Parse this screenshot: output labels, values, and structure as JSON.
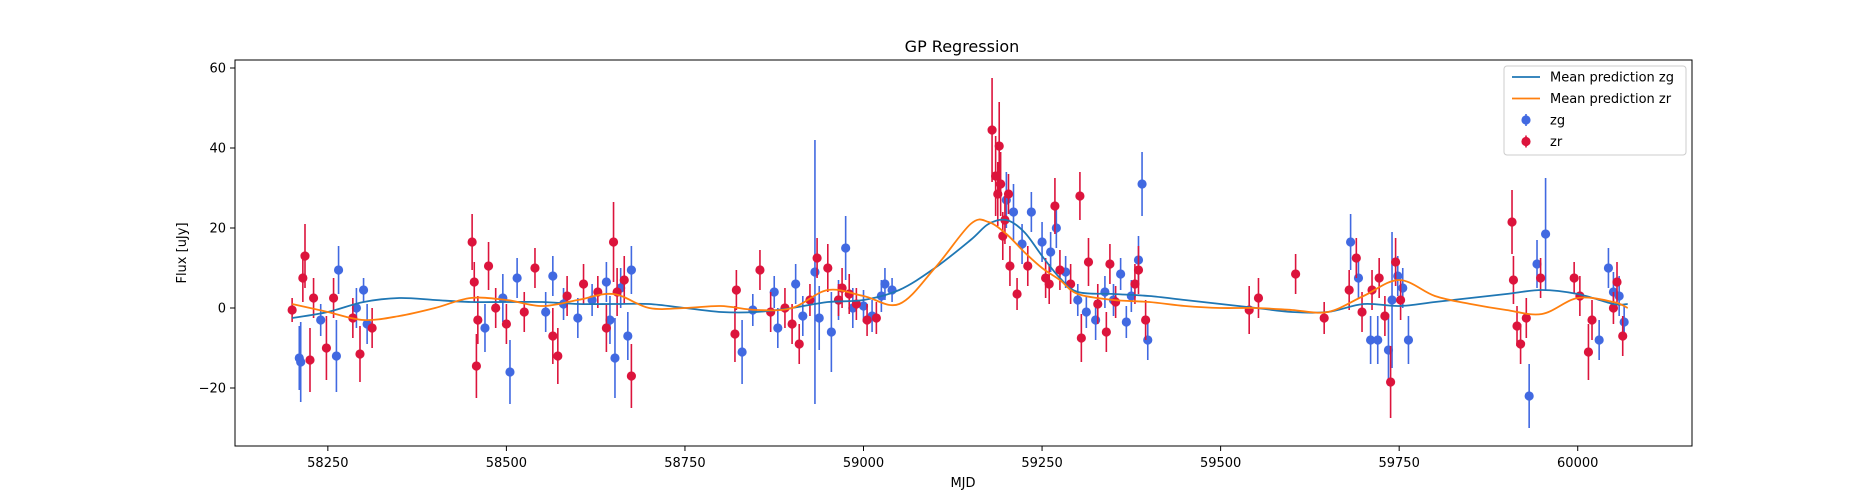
{
  "chart_data": {
    "type": "scatter",
    "title": "GP Regression",
    "xlabel": "MJD",
    "ylabel": "Flux [uJy]",
    "xlim": [
      58120,
      60160
    ],
    "ylim": [
      -34.5,
      62
    ],
    "xticks": [
      58250,
      58500,
      58750,
      59000,
      59250,
      59500,
      59750,
      60000
    ],
    "yticks": [
      -20,
      0,
      20,
      40,
      60
    ],
    "grid": false,
    "legend_position": "top-right",
    "legend": [
      {
        "label": "Mean prediction zg",
        "kind": "line",
        "color": "#1f77b4"
      },
      {
        "label": "Mean prediction zr",
        "kind": "line",
        "color": "#ff7f0e"
      },
      {
        "label": "zg",
        "kind": "errorbar",
        "color": "#4169e1"
      },
      {
        "label": "zr",
        "kind": "errorbar",
        "color": "#dc143c"
      }
    ],
    "series": [
      {
        "name": "Mean prediction zg",
        "kind": "line",
        "color": "#1f77b4",
        "x": [
          58200,
          58250,
          58300,
          58350,
          58400,
          58450,
          58500,
          58550,
          58600,
          58650,
          58700,
          58750,
          58800,
          58850,
          58900,
          58950,
          59000,
          59050,
          59100,
          59150,
          59175,
          59200,
          59225,
          59250,
          59275,
          59300,
          59350,
          59400,
          59450,
          59500,
          59550,
          59600,
          59650,
          59700,
          59750,
          59800,
          59850,
          59900,
          59950,
          60000,
          60050,
          60070
        ],
        "y": [
          -2.5,
          -1,
          1.5,
          2.5,
          2,
          1.5,
          1.5,
          1.5,
          1,
          1,
          1,
          0,
          -1,
          -1,
          0,
          1.5,
          2,
          4.5,
          10,
          17,
          21,
          22,
          19,
          13,
          7.5,
          4,
          3.5,
          3,
          2,
          1,
          0,
          -1,
          -1,
          1,
          0.5,
          1.5,
          2.5,
          3.5,
          4.5,
          3.5,
          1,
          1
        ]
      },
      {
        "name": "Mean prediction zr",
        "kind": "line",
        "color": "#ff7f0e",
        "x": [
          58200,
          58250,
          58300,
          58350,
          58400,
          58450,
          58500,
          58550,
          58600,
          58650,
          58700,
          58750,
          58800,
          58850,
          58900,
          58950,
          59000,
          59050,
          59100,
          59150,
          59175,
          59200,
          59225,
          59250,
          59275,
          59300,
          59350,
          59400,
          59450,
          59500,
          59550,
          59600,
          59650,
          59700,
          59750,
          59800,
          59850,
          59900,
          59950,
          60000,
          60050,
          60070
        ],
        "y": [
          1,
          -1,
          -3,
          -2,
          0,
          2.5,
          2,
          0.5,
          2,
          3.5,
          0,
          0,
          0.5,
          -0.5,
          0,
          4.5,
          3,
          1,
          10,
          21,
          21.5,
          18.5,
          14,
          10,
          7,
          3.5,
          2,
          1.5,
          0.5,
          0,
          0,
          -0.5,
          -1,
          3,
          7,
          3,
          1,
          -0.5,
          -1.5,
          2.5,
          1.5,
          0
        ]
      },
      {
        "name": "zg",
        "kind": "errorbar",
        "color": "#4169e1",
        "points": [
          {
            "x": 58210,
            "y": -12.5,
            "e": 8
          },
          {
            "x": 58212,
            "y": -13.5,
            "e": 10
          },
          {
            "x": 58240,
            "y": -3,
            "e": 4
          },
          {
            "x": 58262,
            "y": -12,
            "e": 9
          },
          {
            "x": 58265,
            "y": 9.5,
            "e": 6
          },
          {
            "x": 58290,
            "y": 0,
            "e": 5
          },
          {
            "x": 58300,
            "y": 4.5,
            "e": 3
          },
          {
            "x": 58305,
            "y": -4,
            "e": 5
          },
          {
            "x": 58470,
            "y": -5,
            "e": 6
          },
          {
            "x": 58495,
            "y": 2.5,
            "e": 6
          },
          {
            "x": 58505,
            "y": -16,
            "e": 8
          },
          {
            "x": 58515,
            "y": 7.5,
            "e": 5
          },
          {
            "x": 58555,
            "y": -1,
            "e": 5
          },
          {
            "x": 58565,
            "y": 8,
            "e": 5
          },
          {
            "x": 58580,
            "y": 1,
            "e": 4
          },
          {
            "x": 58600,
            "y": -2.5,
            "e": 5
          },
          {
            "x": 58620,
            "y": 2,
            "e": 4
          },
          {
            "x": 58640,
            "y": 6.5,
            "e": 5
          },
          {
            "x": 58645,
            "y": -3,
            "e": 6
          },
          {
            "x": 58652,
            "y": -12.5,
            "e": 10
          },
          {
            "x": 58660,
            "y": 5,
            "e": 5
          },
          {
            "x": 58670,
            "y": -7,
            "e": 6
          },
          {
            "x": 58675,
            "y": 9.5,
            "e": 6
          },
          {
            "x": 58830,
            "y": -11,
            "e": 8
          },
          {
            "x": 58845,
            "y": -0.5,
            "e": 4
          },
          {
            "x": 58875,
            "y": 4,
            "e": 4
          },
          {
            "x": 58880,
            "y": -5,
            "e": 5
          },
          {
            "x": 58905,
            "y": 6,
            "e": 5
          },
          {
            "x": 58915,
            "y": -2,
            "e": 5
          },
          {
            "x": 58932,
            "y": 9,
            "e": 33
          },
          {
            "x": 58938,
            "y": -2.5,
            "e": 8
          },
          {
            "x": 58955,
            "y": -6,
            "e": 10
          },
          {
            "x": 58965,
            "y": 2,
            "e": 5
          },
          {
            "x": 58975,
            "y": 15,
            "e": 8
          },
          {
            "x": 58985,
            "y": 0,
            "e": 5
          },
          {
            "x": 59000,
            "y": 0.5,
            "e": 4
          },
          {
            "x": 59012,
            "y": -2,
            "e": 4
          },
          {
            "x": 59025,
            "y": 3,
            "e": 4
          },
          {
            "x": 59030,
            "y": 6,
            "e": 4
          },
          {
            "x": 59040,
            "y": 4.5,
            "e": 3
          },
          {
            "x": 59200,
            "y": 27,
            "e": 7
          },
          {
            "x": 59210,
            "y": 24,
            "e": 7
          },
          {
            "x": 59222,
            "y": 16,
            "e": 5
          },
          {
            "x": 59235,
            "y": 24,
            "e": 5
          },
          {
            "x": 59250,
            "y": 16.5,
            "e": 5
          },
          {
            "x": 59262,
            "y": 14,
            "e": 5
          },
          {
            "x": 59270,
            "y": 20,
            "e": 5
          },
          {
            "x": 59283,
            "y": 9,
            "e": 4
          },
          {
            "x": 59300,
            "y": 2,
            "e": 4
          },
          {
            "x": 59312,
            "y": -1,
            "e": 4
          },
          {
            "x": 59325,
            "y": -3,
            "e": 5
          },
          {
            "x": 59338,
            "y": 4,
            "e": 4
          },
          {
            "x": 59350,
            "y": 2,
            "e": 4
          },
          {
            "x": 59360,
            "y": 8.5,
            "e": 4
          },
          {
            "x": 59368,
            "y": -3.5,
            "e": 4
          },
          {
            "x": 59375,
            "y": 3,
            "e": 4
          },
          {
            "x": 59385,
            "y": 12,
            "e": 6
          },
          {
            "x": 59390,
            "y": 31,
            "e": 8
          },
          {
            "x": 59398,
            "y": -8,
            "e": 5
          },
          {
            "x": 59682,
            "y": 16.5,
            "e": 7
          },
          {
            "x": 59693,
            "y": 7.5,
            "e": 5
          },
          {
            "x": 59710,
            "y": -8,
            "e": 6
          },
          {
            "x": 59720,
            "y": -8,
            "e": 6
          },
          {
            "x": 59735,
            "y": -10.5,
            "e": 9
          },
          {
            "x": 59740,
            "y": 2,
            "e": 17
          },
          {
            "x": 59748,
            "y": 8,
            "e": 5
          },
          {
            "x": 59755,
            "y": 5,
            "e": 5
          },
          {
            "x": 59763,
            "y": -8,
            "e": 6
          },
          {
            "x": 59932,
            "y": -22,
            "e": 8
          },
          {
            "x": 59943,
            "y": 11,
            "e": 6
          },
          {
            "x": 59955,
            "y": 18.5,
            "e": 14
          },
          {
            "x": 60030,
            "y": -8,
            "e": 5
          },
          {
            "x": 60043,
            "y": 10,
            "e": 5
          },
          {
            "x": 60050,
            "y": 4,
            "e": 5
          },
          {
            "x": 60058,
            "y": 3,
            "e": 5
          },
          {
            "x": 60065,
            "y": -3.5,
            "e": 4
          }
        ]
      },
      {
        "name": "zr",
        "kind": "errorbar",
        "color": "#dc143c",
        "points": [
          {
            "x": 58200,
            "y": -0.5,
            "e": 3
          },
          {
            "x": 58215,
            "y": 7.5,
            "e": 6
          },
          {
            "x": 58218,
            "y": 13,
            "e": 8
          },
          {
            "x": 58225,
            "y": -13,
            "e": 8
          },
          {
            "x": 58230,
            "y": 2.5,
            "e": 5
          },
          {
            "x": 58248,
            "y": -10,
            "e": 8
          },
          {
            "x": 58258,
            "y": 2.5,
            "e": 5
          },
          {
            "x": 58285,
            "y": -2.5,
            "e": 5
          },
          {
            "x": 58295,
            "y": -11.5,
            "e": 7
          },
          {
            "x": 58312,
            "y": -5,
            "e": 5
          },
          {
            "x": 58452,
            "y": 16.5,
            "e": 7
          },
          {
            "x": 58455,
            "y": 6.5,
            "e": 5
          },
          {
            "x": 58458,
            "y": -14.5,
            "e": 8
          },
          {
            "x": 58460,
            "y": -3,
            "e": 6
          },
          {
            "x": 58475,
            "y": 10.5,
            "e": 6
          },
          {
            "x": 58485,
            "y": 0,
            "e": 5
          },
          {
            "x": 58500,
            "y": -4,
            "e": 5
          },
          {
            "x": 58525,
            "y": -1,
            "e": 5
          },
          {
            "x": 58540,
            "y": 10,
            "e": 5
          },
          {
            "x": 58565,
            "y": -7,
            "e": 7
          },
          {
            "x": 58572,
            "y": -12,
            "e": 7
          },
          {
            "x": 58585,
            "y": 3,
            "e": 5
          },
          {
            "x": 58608,
            "y": 6,
            "e": 5
          },
          {
            "x": 58628,
            "y": 4,
            "e": 4
          },
          {
            "x": 58640,
            "y": -5,
            "e": 6
          },
          {
            "x": 58650,
            "y": 16.5,
            "e": 10
          },
          {
            "x": 58655,
            "y": 4,
            "e": 6
          },
          {
            "x": 58665,
            "y": 7,
            "e": 6
          },
          {
            "x": 58675,
            "y": -17,
            "e": 8
          },
          {
            "x": 58820,
            "y": -6.5,
            "e": 7
          },
          {
            "x": 58822,
            "y": 4.5,
            "e": 5
          },
          {
            "x": 58855,
            "y": 9.5,
            "e": 5
          },
          {
            "x": 58870,
            "y": -1,
            "e": 5
          },
          {
            "x": 58890,
            "y": 0,
            "e": 5
          },
          {
            "x": 58900,
            "y": -4,
            "e": 5
          },
          {
            "x": 58910,
            "y": -9,
            "e": 5
          },
          {
            "x": 58925,
            "y": 2,
            "e": 4
          },
          {
            "x": 58935,
            "y": 12.5,
            "e": 5
          },
          {
            "x": 58950,
            "y": 10,
            "e": 6
          },
          {
            "x": 58965,
            "y": 2,
            "e": 4
          },
          {
            "x": 58970,
            "y": 5,
            "e": 5
          },
          {
            "x": 58980,
            "y": 3.5,
            "e": 5
          },
          {
            "x": 58990,
            "y": 1,
            "e": 4
          },
          {
            "x": 59005,
            "y": -3,
            "e": 4
          },
          {
            "x": 59018,
            "y": -2.5,
            "e": 4
          },
          {
            "x": 59180,
            "y": 44.5,
            "e": 13
          },
          {
            "x": 59185,
            "y": 33,
            "e": 10
          },
          {
            "x": 59188,
            "y": 28.5,
            "e": 8
          },
          {
            "x": 59190,
            "y": 40.5,
            "e": 11
          },
          {
            "x": 59192,
            "y": 31,
            "e": 8
          },
          {
            "x": 59195,
            "y": 18,
            "e": 6
          },
          {
            "x": 59198,
            "y": 22,
            "e": 6
          },
          {
            "x": 59203,
            "y": 28.5,
            "e": 5
          },
          {
            "x": 59205,
            "y": 10.5,
            "e": 5
          },
          {
            "x": 59215,
            "y": 3.5,
            "e": 4
          },
          {
            "x": 59230,
            "y": 10.5,
            "e": 5
          },
          {
            "x": 59255,
            "y": 7.5,
            "e": 5
          },
          {
            "x": 59260,
            "y": 6,
            "e": 5
          },
          {
            "x": 59268,
            "y": 25.5,
            "e": 7
          },
          {
            "x": 59275,
            "y": 9.5,
            "e": 5
          },
          {
            "x": 59290,
            "y": 6,
            "e": 5
          },
          {
            "x": 59303,
            "y": 28,
            "e": 6
          },
          {
            "x": 59305,
            "y": -7.5,
            "e": 6
          },
          {
            "x": 59315,
            "y": 11.5,
            "e": 6
          },
          {
            "x": 59328,
            "y": 1,
            "e": 5
          },
          {
            "x": 59340,
            "y": -6,
            "e": 5
          },
          {
            "x": 59345,
            "y": 11,
            "e": 5
          },
          {
            "x": 59353,
            "y": 1.5,
            "e": 4
          },
          {
            "x": 59380,
            "y": 6,
            "e": 5
          },
          {
            "x": 59385,
            "y": 9.5,
            "e": 6
          },
          {
            "x": 59395,
            "y": -3,
            "e": 5
          },
          {
            "x": 59540,
            "y": -0.5,
            "e": 6
          },
          {
            "x": 59553,
            "y": 2.5,
            "e": 5
          },
          {
            "x": 59605,
            "y": 8.5,
            "e": 5
          },
          {
            "x": 59645,
            "y": -2.5,
            "e": 4
          },
          {
            "x": 59680,
            "y": 4.5,
            "e": 5
          },
          {
            "x": 59690,
            "y": 12.5,
            "e": 5
          },
          {
            "x": 59698,
            "y": -1,
            "e": 5
          },
          {
            "x": 59712,
            "y": 4.5,
            "e": 5
          },
          {
            "x": 59722,
            "y": 7.5,
            "e": 5
          },
          {
            "x": 59730,
            "y": -2,
            "e": 5
          },
          {
            "x": 59738,
            "y": -18.5,
            "e": 9
          },
          {
            "x": 59745,
            "y": 11.5,
            "e": 6
          },
          {
            "x": 59752,
            "y": 2,
            "e": 5
          },
          {
            "x": 59908,
            "y": 21.5,
            "e": 8
          },
          {
            "x": 59910,
            "y": 7,
            "e": 6
          },
          {
            "x": 59915,
            "y": -4.5,
            "e": 5
          },
          {
            "x": 59920,
            "y": -9,
            "e": 5
          },
          {
            "x": 59928,
            "y": -2.5,
            "e": 5
          },
          {
            "x": 59948,
            "y": 7.5,
            "e": 5
          },
          {
            "x": 59995,
            "y": 7.5,
            "e": 4
          },
          {
            "x": 60003,
            "y": 3,
            "e": 5
          },
          {
            "x": 60015,
            "y": -11,
            "e": 7
          },
          {
            "x": 60020,
            "y": -3,
            "e": 5
          },
          {
            "x": 60050,
            "y": 0,
            "e": 4
          },
          {
            "x": 60055,
            "y": 6.5,
            "e": 5
          },
          {
            "x": 60063,
            "y": -7,
            "e": 5
          }
        ]
      }
    ]
  }
}
